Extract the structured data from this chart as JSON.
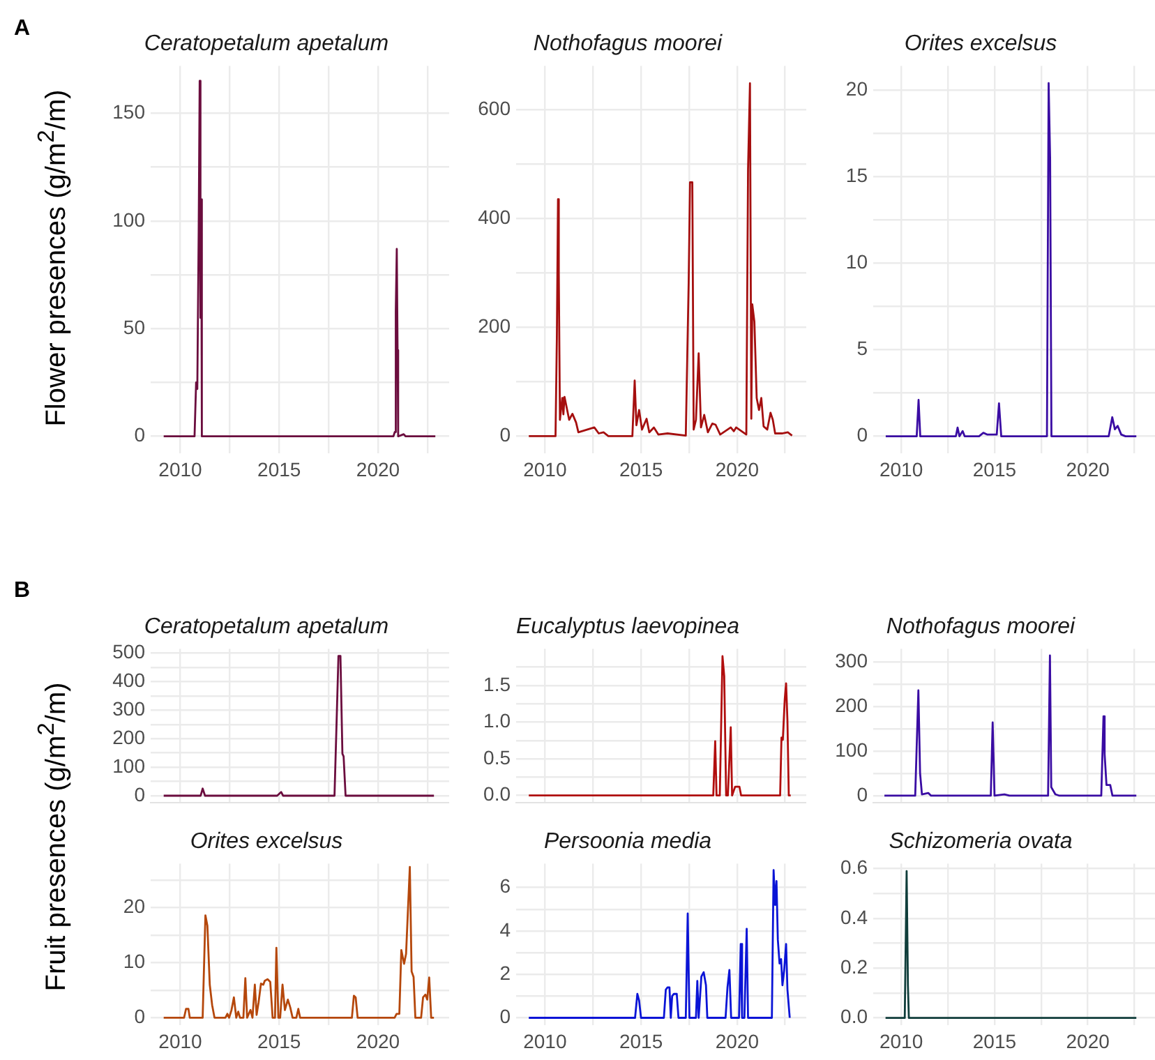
{
  "chart_data": [
    {
      "type": "line",
      "title": "Ceratopetalum apetalum",
      "ylabel": "Flower presences (g/m$^{2}$/m)",
      "annotations": [
        "A"
      ],
      "grid": true,
      "color": "#6b0d3e",
      "xlim": [
        2008.5,
        2023.6
      ],
      "xticks": [
        2010,
        {
          "value": 2012.5,
          "label": null
        },
        2015,
        {
          "value": 2017.5,
          "label": null
        },
        2020,
        {
          "value": 2022.5,
          "label": null
        }
      ],
      "ylim": [
        -8,
        172
      ],
      "yticks": [
        0,
        {
          "value": 25,
          "label": null
        },
        50,
        {
          "value": 75,
          "label": null
        },
        100,
        {
          "value": 125,
          "label": null
        },
        150
      ],
      "x": [
        2009.16,
        2010.72,
        2010.8,
        2010.86,
        2010.93,
        2010.98,
        2011.02,
        2011.06,
        2011.09,
        2020.78,
        2020.85,
        2020.9,
        2020.95,
        2020.99,
        2021.02,
        2021.3,
        2021.4,
        2022.9
      ],
      "values": [
        0,
        0,
        25,
        22,
        95,
        165,
        55,
        110,
        0,
        0,
        2,
        58,
        87,
        40,
        0,
        1,
        0,
        0
      ]
    },
    {
      "type": "line",
      "title": "Nothofagus moorei",
      "grid": true,
      "color": "#a50f0f",
      "xlim": [
        2008.5,
        2023.6
      ],
      "xticks": [
        2010,
        {
          "value": 2012.5,
          "label": null
        },
        2015,
        {
          "value": 2017.5,
          "label": null
        },
        2020,
        {
          "value": 2022.5,
          "label": null
        }
      ],
      "ylim": [
        -32,
        680
      ],
      "yticks": [
        0,
        {
          "value": 100,
          "label": null
        },
        200,
        {
          "value": 300,
          "label": null
        },
        400,
        {
          "value": 500,
          "label": null
        },
        600
      ],
      "x": [
        2009.16,
        2010.55,
        2010.62,
        2010.68,
        2010.72,
        2010.78,
        2010.9,
        2010.96,
        2011.02,
        2011.26,
        2011.43,
        2011.62,
        2011.74,
        2012.57,
        2012.8,
        2013.05,
        2013.3,
        2014.55,
        2014.67,
        2014.76,
        2014.9,
        2015.05,
        2015.29,
        2015.43,
        2015.67,
        2015.9,
        2016.38,
        2017.33,
        2017.48,
        2017.55,
        2017.67,
        2017.74,
        2017.86,
        2018.0,
        2018.12,
        2018.29,
        2018.48,
        2018.71,
        2018.88,
        2019.12,
        2019.67,
        2019.83,
        2019.95,
        2020.48,
        2020.57,
        2020.67,
        2020.74,
        2020.79,
        2020.9,
        2021.02,
        2021.14,
        2021.26,
        2021.38,
        2021.57,
        2021.74,
        2021.86,
        2021.98,
        2022.33,
        2022.64,
        2022.86
      ],
      "values": [
        0,
        0,
        180,
        435,
        300,
        30,
        70,
        40,
        72,
        30,
        41,
        25,
        7,
        16,
        5,
        7,
        0,
        0,
        102,
        20,
        48,
        12,
        32,
        7,
        16,
        3,
        5,
        1,
        282,
        466,
        466,
        12,
        30,
        152,
        16,
        39,
        7,
        23,
        21,
        3,
        16,
        9,
        16,
        3,
        490,
        648,
        32,
        242,
        210,
        70,
        48,
        70,
        18,
        12,
        43,
        30,
        5,
        5,
        7,
        1
      ]
    },
    {
      "type": "line",
      "title": "Orites excelsus",
      "grid": true,
      "color": "#3a0ca3",
      "xlim": [
        2008.5,
        2023.6
      ],
      "xticks": [
        2010,
        {
          "value": 2012.5,
          "label": null
        },
        2015,
        {
          "value": 2017.5,
          "label": null
        },
        2020,
        {
          "value": 2022.5,
          "label": null
        }
      ],
      "ylim": [
        -1,
        21.4
      ],
      "yticks": [
        0,
        {
          "value": 2.5,
          "label": null
        },
        5,
        {
          "value": 7.5,
          "label": null
        },
        10,
        {
          "value": 12.5,
          "label": null
        },
        15,
        {
          "value": 17.5,
          "label": null
        },
        20
      ],
      "x": [
        2009.17,
        2010.83,
        2010.93,
        2011.02,
        2012.93,
        2013.02,
        2013.12,
        2013.29,
        2013.4,
        2014.17,
        2014.4,
        2014.6,
        2015.12,
        2015.24,
        2015.36,
        2017.81,
        2017.9,
        2017.98,
        2018.05,
        2021.12,
        2021.31,
        2021.45,
        2021.6,
        2021.79,
        2022.02,
        2022.6
      ],
      "values": [
        0,
        0,
        2.1,
        0,
        0,
        0.5,
        0,
        0.3,
        0,
        0,
        0.2,
        0.1,
        0.1,
        1.9,
        0,
        0,
        20.4,
        16,
        0,
        0,
        1.1,
        0.4,
        0.6,
        0.1,
        0,
        0
      ]
    },
    {
      "type": "line",
      "title": "Ceratopetalum apetalum",
      "ylabel": "Fruit presences (g/m$^{2}$/m)",
      "annotations": [
        "B"
      ],
      "grid": true,
      "tick_labels": "y",
      "color": "#6b0d3e",
      "xlim": [
        2008.5,
        2023.6
      ],
      "xticks": [
        2010,
        {
          "value": 2012.5,
          "label": null
        },
        2015,
        {
          "value": 2017.5,
          "label": null
        },
        2020,
        {
          "value": 2022.5,
          "label": null
        }
      ],
      "ylim": [
        -25,
        515
      ],
      "yticks": [
        0,
        {
          "value": 50,
          "label": null
        },
        100,
        {
          "value": 150,
          "label": null
        },
        200,
        {
          "value": 250,
          "label": null
        },
        300,
        {
          "value": 350,
          "label": null
        },
        400,
        {
          "value": 450,
          "label": null
        },
        500
      ],
      "x": [
        2009.16,
        2011.03,
        2011.13,
        2011.25,
        2014.9,
        2015.1,
        2015.2,
        2017.8,
        2018.0,
        2018.1,
        2018.2,
        2018.26,
        2018.36,
        2022.83
      ],
      "values": [
        0,
        0,
        25,
        0,
        0,
        13,
        0,
        0,
        490,
        490,
        147,
        138,
        0,
        0
      ]
    },
    {
      "type": "line",
      "title": "Eucalyptus laevopinea",
      "grid": true,
      "tick_labels": "y",
      "color": "#b10e0e",
      "xlim": [
        2008.5,
        2023.6
      ],
      "xticks": [
        2010,
        {
          "value": 2012.5,
          "label": null
        },
        2015,
        {
          "value": 2017.5,
          "label": null
        },
        2020,
        {
          "value": 2022.5,
          "label": null
        }
      ],
      "ylim": [
        -0.1,
        2.0
      ],
      "yticks": [
        {
          "value": 0,
          "label": "0.0"
        },
        {
          "value": 0.25,
          "label": null
        },
        {
          "value": 0.5,
          "label": "0.5"
        },
        {
          "value": 0.75,
          "label": null
        },
        {
          "value": 1,
          "label": "1.0"
        },
        {
          "value": 1.25,
          "label": null
        },
        {
          "value": 1.5,
          "label": "1.5"
        },
        {
          "value": 1.75,
          "label": null
        }
      ],
      "x": [
        2009.16,
        2018.76,
        2018.86,
        2018.93,
        2019.1,
        2019.24,
        2019.33,
        2019.43,
        2019.52,
        2019.67,
        2019.74,
        2019.9,
        2020.12,
        2020.21,
        2022.24,
        2022.31,
        2022.38,
        2022.48,
        2022.55,
        2022.62,
        2022.69,
        2022.79
      ],
      "values": [
        0,
        0,
        0.74,
        0,
        0,
        1.9,
        1.63,
        0,
        0,
        0.93,
        0,
        0.12,
        0.12,
        0,
        0,
        0.79,
        0.76,
        1.31,
        1.53,
        1.02,
        0,
        0
      ]
    },
    {
      "type": "line",
      "title": "Nothofagus moorei",
      "grid": true,
      "tick_labels": "y",
      "color": "#3a0ca3",
      "xlim": [
        2008.5,
        2023.6
      ],
      "xticks": [
        2010,
        {
          "value": 2012.5,
          "label": null
        },
        2015,
        {
          "value": 2017.5,
          "label": null
        },
        2020,
        {
          "value": 2022.5,
          "label": null
        }
      ],
      "ylim": [
        -16,
        329
      ],
      "yticks": [
        0,
        {
          "value": 50,
          "label": null
        },
        100,
        {
          "value": 150,
          "label": null
        },
        200,
        {
          "value": 250,
          "label": null
        },
        300
      ],
      "x": [
        2009.1,
        2010.75,
        2010.84,
        2010.92,
        2011.01,
        2011.11,
        2011.45,
        2011.6,
        2014.8,
        2014.9,
        2015.0,
        2015.53,
        2015.8,
        2017.87,
        2017.97,
        2018.04,
        2018.26,
        2018.48,
        2020.72,
        2020.84,
        2020.9,
        2021.0,
        2021.2,
        2021.32,
        2022.6
      ],
      "values": [
        0,
        0,
        125,
        236,
        51,
        3,
        6,
        0,
        0,
        164,
        0,
        3,
        0,
        0,
        314,
        19,
        3,
        0,
        0,
        178,
        93,
        24,
        24,
        0,
        0
      ]
    },
    {
      "type": "line",
      "title": "Orites excelsus",
      "grid": true,
      "color": "#b5470b",
      "xlim": [
        2008.5,
        2023.6
      ],
      "xticks": [
        2010,
        {
          "value": 2012.5,
          "label": null
        },
        2015,
        {
          "value": 2017.5,
          "label": null
        },
        2020,
        {
          "value": 2022.5,
          "label": null
        }
      ],
      "ylim": [
        -1.4,
        28
      ],
      "yticks": [
        0,
        {
          "value": 5,
          "label": null
        },
        10,
        {
          "value": 15,
          "label": null
        },
        20,
        {
          "value": 25,
          "label": null
        }
      ],
      "x": [
        2009.16,
        2010.19,
        2010.29,
        2010.41,
        2010.48,
        2011.13,
        2011.27,
        2011.37,
        2011.49,
        2011.61,
        2011.73,
        2012.28,
        2012.38,
        2012.47,
        2012.59,
        2012.71,
        2012.83,
        2012.93,
        2013.02,
        2013.19,
        2013.29,
        2013.38,
        2013.55,
        2013.65,
        2013.77,
        2013.86,
        2013.96,
        2014.08,
        2014.2,
        2014.27,
        2014.41,
        2014.55,
        2014.67,
        2014.79,
        2014.86,
        2014.96,
        2015.05,
        2015.17,
        2015.29,
        2015.44,
        2015.56,
        2015.68,
        2015.87,
        2015.97,
        2016.06,
        2018.68,
        2018.78,
        2018.87,
        2018.97,
        2020.84,
        2020.94,
        2021.08,
        2021.18,
        2021.32,
        2021.42,
        2021.51,
        2021.61,
        2021.7,
        2021.8,
        2021.89,
        2022.18,
        2022.28,
        2022.4,
        2022.49,
        2022.59,
        2022.69,
        2022.83
      ],
      "values": [
        0,
        0,
        1.6,
        1.6,
        0,
        0,
        18.6,
        16.7,
        6,
        2.3,
        0,
        0,
        0.7,
        0,
        1.4,
        3.7,
        0,
        1.1,
        0,
        0,
        7.2,
        0,
        1.4,
        0,
        6,
        0.5,
        2.8,
        6.2,
        6,
        6.7,
        7,
        6.5,
        0,
        0,
        12.7,
        0,
        0,
        6,
        1.4,
        3.3,
        1.9,
        0,
        0,
        1.6,
        0,
        0,
        4,
        3.7,
        0,
        0,
        0.7,
        0.7,
        12.3,
        9.8,
        11.6,
        19.1,
        27.4,
        8.4,
        7.4,
        0,
        0,
        3.7,
        4.2,
        3.3,
        7.3,
        0,
        0
      ]
    },
    {
      "type": "line",
      "title": "Persoonia media",
      "grid": true,
      "color": "#0a14d6",
      "xlim": [
        2008.5,
        2023.6
      ],
      "xticks": [
        2010,
        {
          "value": 2012.5,
          "label": null
        },
        2015,
        {
          "value": 2017.5,
          "label": null
        },
        2020,
        {
          "value": 2022.5,
          "label": null
        }
      ],
      "ylim": [
        -0.35,
        7.1
      ],
      "yticks": [
        0,
        {
          "value": 1,
          "label": null
        },
        2,
        {
          "value": 3,
          "label": null
        },
        4,
        {
          "value": 5,
          "label": null
        },
        6
      ],
      "x": [
        2009.16,
        2014.69,
        2014.81,
        2014.9,
        2015.0,
        2016.19,
        2016.29,
        2016.38,
        2016.48,
        2016.55,
        2016.62,
        2016.71,
        2016.86,
        2016.95,
        2017.33,
        2017.43,
        2017.52,
        2017.86,
        2017.93,
        2018.0,
        2018.14,
        2018.26,
        2018.38,
        2018.45,
        2019.4,
        2019.5,
        2019.6,
        2019.69,
        2020.1,
        2020.19,
        2020.26,
        2020.38,
        2020.5,
        2020.57,
        2021.81,
        2021.9,
        2021.98,
        2022.05,
        2022.12,
        2022.21,
        2022.29,
        2022.36,
        2022.45,
        2022.55,
        2022.62,
        2022.74
      ],
      "values": [
        0,
        0,
        1.1,
        0.8,
        0,
        0,
        1.3,
        1.4,
        1.4,
        0,
        1.0,
        1.1,
        1.1,
        0,
        0,
        4.8,
        0,
        0,
        1.7,
        0,
        1.9,
        2.1,
        1.5,
        0,
        0,
        1.4,
        2.2,
        0,
        0,
        3.4,
        0,
        0,
        4.1,
        0,
        0,
        6.8,
        5.2,
        6.3,
        3.6,
        2.5,
        2.7,
        1.5,
        2.2,
        3.4,
        1.3,
        0
      ]
    },
    {
      "type": "line",
      "title": "Schizomeria ovata",
      "grid": true,
      "color": "#0f3d3a",
      "xlim": [
        2008.5,
        2023.6
      ],
      "xticks": [
        2010,
        {
          "value": 2012.5,
          "label": null
        },
        2015,
        {
          "value": 2017.5,
          "label": null
        },
        2020,
        {
          "value": 2022.5,
          "label": null
        }
      ],
      "ylim": [
        -0.03,
        0.62
      ],
      "yticks": [
        {
          "value": 0,
          "label": "0.0"
        },
        {
          "value": 0.1,
          "label": null
        },
        {
          "value": 0.2,
          "label": "0.2"
        },
        {
          "value": 0.3,
          "label": null
        },
        {
          "value": 0.4,
          "label": "0.4"
        },
        {
          "value": 0.5,
          "label": null
        },
        {
          "value": 0.6,
          "label": "0.6"
        }
      ],
      "x": [
        2009.16,
        2010.19,
        2010.29,
        2010.36,
        2010.41,
        2022.6
      ],
      "values": [
        0,
        0,
        0.59,
        0.13,
        0,
        0
      ]
    }
  ]
}
